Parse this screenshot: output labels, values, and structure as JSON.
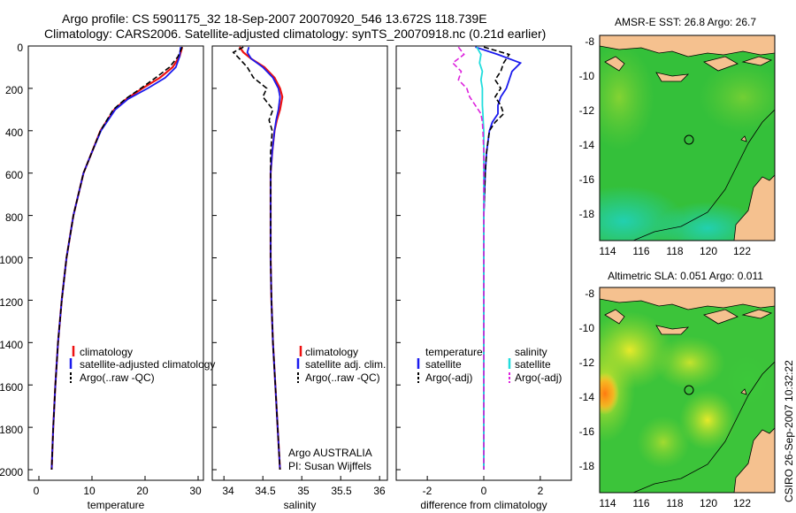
{
  "header": {
    "title_line1": "Argo profile: CS 5901175_32 18-Sep-2007 20070920_546 13.672S 118.739E",
    "title_line2": "Climatology: CARS2006. Satellite-adjusted climatology: synTS_20070918.nc (0.21d earlier)"
  },
  "side_stamp": "CSIRO 26-Sep-2007 10:32:22",
  "colors": {
    "climatology": "#ee1111",
    "satellite": "#1a1aee",
    "argo": "#000000",
    "sat_salinity": "#22dddd",
    "argo_salinity": "#dd22dd",
    "land": "#f5c18f"
  },
  "chart_data": [
    {
      "type": "line",
      "name": "temperature-profile",
      "xlabel": "temperature",
      "xlim": [
        -2,
        31
      ],
      "xticks": [
        "0",
        "10",
        "20",
        "30"
      ],
      "ylim": [
        0,
        2050
      ],
      "yticks": [
        "0",
        "200",
        "400",
        "600",
        "800",
        "1000",
        "1200",
        "1400",
        "1600",
        "1800",
        "2000"
      ],
      "depth": [
        5,
        50,
        100,
        150,
        200,
        250,
        300,
        400,
        500,
        600,
        800,
        1000,
        1200,
        1400,
        1600,
        1800,
        2000
      ],
      "series": [
        {
          "name": "climatology",
          "values": [
            27.0,
            26.5,
            25.2,
            22.8,
            19.5,
            16.5,
            14.2,
            11.6,
            10.0,
            8.4,
            6.5,
            5.2,
            4.3,
            3.6,
            3.1,
            2.7,
            2.4
          ]
        },
        {
          "name": "satellite-adjusted climatology",
          "values": [
            26.7,
            26.5,
            25.8,
            23.8,
            20.5,
            16.8,
            14.4,
            11.7,
            10.0,
            8.4,
            6.5,
            5.2,
            4.3,
            3.6,
            3.1,
            2.7,
            2.4
          ]
        },
        {
          "name": "Argo(..raw -QC)",
          "values": [
            27.0,
            26.2,
            24.6,
            22.0,
            19.2,
            16.3,
            14.0,
            11.6,
            10.0,
            8.4,
            6.5,
            5.2,
            4.3,
            3.6,
            3.1,
            2.7,
            2.4
          ]
        }
      ],
      "legend": [
        "climatology",
        "satellite-adjusted climatology",
        "Argo(..raw -QC)"
      ]
    },
    {
      "type": "line",
      "name": "salinity-profile",
      "xlabel": "salinity",
      "xlim": [
        33.85,
        36.1
      ],
      "xticks": [
        "34",
        "34.5",
        "35",
        "35.5",
        "36"
      ],
      "ylim": [
        0,
        2050
      ],
      "depth": [
        5,
        30,
        60,
        100,
        150,
        200,
        240,
        300,
        350,
        400,
        500,
        600,
        800,
        1000,
        1200,
        1400,
        1600,
        1800,
        2000
      ],
      "series": [
        {
          "name": "climatology",
          "values": [
            34.2,
            34.25,
            34.35,
            34.52,
            34.65,
            34.72,
            34.75,
            34.72,
            34.68,
            34.65,
            34.62,
            34.6,
            34.6,
            34.6,
            34.61,
            34.63,
            34.66,
            34.69,
            34.72
          ]
        },
        {
          "name": "satellite adj. clim.",
          "values": [
            34.32,
            34.3,
            34.35,
            34.5,
            34.63,
            34.7,
            34.72,
            34.7,
            34.67,
            34.65,
            34.62,
            34.6,
            34.6,
            34.6,
            34.61,
            34.63,
            34.66,
            34.69,
            34.72
          ]
        },
        {
          "name": "Argo(..raw -QC)",
          "values": [
            34.25,
            34.12,
            34.2,
            34.3,
            34.38,
            34.55,
            34.5,
            34.63,
            34.58,
            34.62,
            34.6,
            34.6,
            34.6,
            34.6,
            34.61,
            34.63,
            34.66,
            34.69,
            34.72
          ]
        }
      ],
      "legend": [
        "climatology",
        "satellite adj. clim.",
        "Argo(..raw -QC)"
      ],
      "annotation_line1": "Argo AUSTRALIA",
      "annotation_line2": "PI: Susan Wijffels"
    },
    {
      "type": "line",
      "name": "difference-profile",
      "xlabel": "difference from climatology",
      "xlim": [
        -3.1,
        3.1
      ],
      "xticks": [
        "-2",
        "0",
        "2"
      ],
      "ylim": [
        0,
        2050
      ],
      "depth": [
        5,
        40,
        80,
        120,
        160,
        200,
        240,
        280,
        320,
        360,
        400,
        500,
        600,
        800,
        1000,
        1500,
        2000
      ],
      "series": [
        {
          "name": "temperature satellite",
          "values": [
            -0.3,
            0.5,
            1.3,
            1.0,
            0.9,
            0.8,
            0.6,
            0.5,
            0.5,
            0.3,
            0.2,
            0.1,
            0.05,
            0.0,
            0.0,
            0.0,
            0.0
          ]
        },
        {
          "name": "temperature Argo(-adj)",
          "values": [
            0.0,
            0.9,
            0.7,
            0.6,
            0.4,
            0.6,
            0.4,
            0.6,
            0.7,
            0.4,
            0.2,
            0.1,
            0.05,
            0.0,
            0.0,
            0.0,
            0.0
          ]
        },
        {
          "name": "salinity satellite",
          "values": [
            -0.25,
            -0.1,
            -0.15,
            -0.05,
            -0.1,
            -0.05,
            -0.05,
            -0.05,
            -0.03,
            -0.02,
            0.0,
            0.0,
            0.0,
            0.0,
            0.0,
            0.0,
            0.0
          ]
        },
        {
          "name": "salinity Argo(-adj)",
          "values": [
            -0.9,
            -0.7,
            -1.1,
            -0.8,
            -0.9,
            -0.6,
            -0.5,
            -0.3,
            -0.1,
            -0.05,
            -0.03,
            0.0,
            0.0,
            0.0,
            0.0,
            0.0,
            0.0
          ]
        }
      ],
      "legend_headers": [
        "temperature",
        "salinity"
      ],
      "legend": [
        "satellite",
        "Argo(-adj)",
        "satellite",
        "Argo(-adj)"
      ]
    },
    {
      "type": "heatmap",
      "name": "sst-map",
      "title": "AMSR-E SST: 26.8 Argo: 26.7",
      "xlim": [
        113.5,
        124
      ],
      "ylim": [
        -19.8,
        -7.7
      ],
      "xticks": [
        "114",
        "116",
        "118",
        "120",
        "122"
      ],
      "yticks": [
        "-8",
        "-10",
        "-12",
        "-14",
        "-16",
        "-18"
      ],
      "float_position": [
        118.739,
        -13.672
      ]
    },
    {
      "type": "heatmap",
      "name": "sla-map",
      "title": "Altimetric SLA: 0.051 Argo: 0.011",
      "xlim": [
        113.5,
        124
      ],
      "ylim": [
        -19.8,
        -7.7
      ],
      "xticks": [
        "114",
        "116",
        "118",
        "120",
        "122"
      ],
      "yticks": [
        "-8",
        "-10",
        "-12",
        "-14",
        "-16",
        "-18"
      ],
      "float_position": [
        118.739,
        -13.672
      ]
    }
  ]
}
